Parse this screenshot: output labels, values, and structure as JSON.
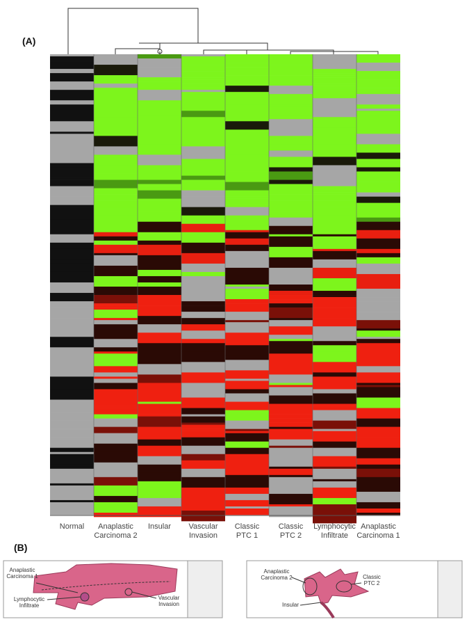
{
  "panels": [
    {
      "label": "(A)"
    },
    {
      "label": "(B)"
    }
  ],
  "heatmap": {
    "columns": [
      [
        "Normal"
      ],
      [
        "Anaplastic",
        "Carcinoma 2"
      ],
      [
        "Insular"
      ],
      [
        "Vascular",
        "Invasion"
      ],
      [
        "Classic",
        "PTC 1"
      ],
      [
        "Classic",
        "PTC 2"
      ],
      [
        "Lymphocytic",
        "Infiltrate"
      ],
      [
        "Anaplastic",
        "Carcinoma 1"
      ]
    ]
  },
  "diagram_left": {
    "labels": [
      [
        "Anaplastic",
        "Carcinoma 1"
      ],
      [
        "Lymphocytic",
        "Infiltrate"
      ],
      [
        "Vascular",
        "Invasion"
      ]
    ]
  },
  "diagram_right": {
    "labels": [
      [
        "Anaplastic",
        "Carcinoma 2"
      ],
      [
        "Classic",
        "PTC 2"
      ],
      [
        "Insular"
      ]
    ]
  }
}
